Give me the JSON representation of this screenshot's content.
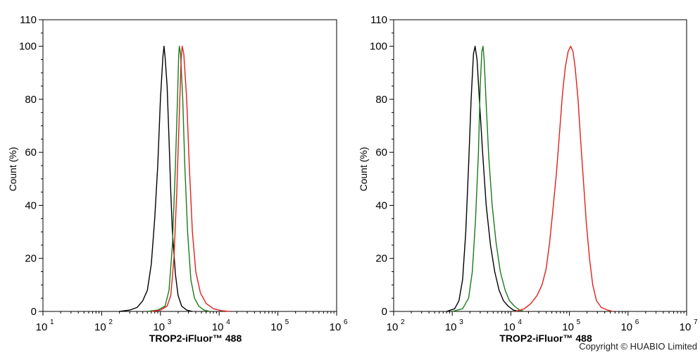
{
  "chart_data": [
    {
      "type": "line",
      "xlabel": "TROP2-iFluor™ 488",
      "ylabel": "Count  (%)",
      "x_scale": "log",
      "xlim": [
        10,
        1000000
      ],
      "ylim": [
        0,
        110
      ],
      "x_ticks": [
        {
          "base": "10",
          "exp": "1"
        },
        {
          "base": "10",
          "exp": "2"
        },
        {
          "base": "10",
          "exp": "3"
        },
        {
          "base": "10",
          "exp": "4"
        },
        {
          "base": "10",
          "exp": "5"
        },
        {
          "base": "10",
          "exp": "6"
        }
      ],
      "y_ticks": [
        "0",
        "20",
        "40",
        "60",
        "80",
        "100",
        "110"
      ],
      "grid": false,
      "series": [
        {
          "color": "#000000",
          "points": [
            [
              200,
              0
            ],
            [
              300,
              0.5
            ],
            [
              400,
              1.5
            ],
            [
              500,
              4
            ],
            [
              600,
              8
            ],
            [
              700,
              18
            ],
            [
              800,
              35
            ],
            [
              900,
              55
            ],
            [
              1000,
              80
            ],
            [
              1100,
              96
            ],
            [
              1150,
              100
            ],
            [
              1200,
              96
            ],
            [
              1300,
              85
            ],
            [
              1400,
              65
            ],
            [
              1500,
              45
            ],
            [
              1600,
              30
            ],
            [
              1800,
              14
            ],
            [
              2000,
              6
            ],
            [
              2300,
              2
            ],
            [
              2800,
              0.5
            ],
            [
              3500,
              0
            ]
          ]
        },
        {
          "color": "#1a7a1a",
          "points": [
            [
              600,
              0
            ],
            [
              900,
              0.5
            ],
            [
              1200,
              2
            ],
            [
              1400,
              8
            ],
            [
              1600,
              25
            ],
            [
              1800,
              55
            ],
            [
              1950,
              80
            ],
            [
              2050,
              97
            ],
            [
              2100,
              100
            ],
            [
              2200,
              97
            ],
            [
              2400,
              80
            ],
            [
              2600,
              55
            ],
            [
              2900,
              30
            ],
            [
              3300,
              12
            ],
            [
              3800,
              5
            ],
            [
              4500,
              2
            ],
            [
              5500,
              0.5
            ],
            [
              7000,
              0
            ]
          ]
        },
        {
          "color": "#e0201a",
          "points": [
            [
              700,
              0
            ],
            [
              1000,
              0.5
            ],
            [
              1300,
              2
            ],
            [
              1500,
              6
            ],
            [
              1700,
              20
            ],
            [
              1900,
              45
            ],
            [
              2100,
              75
            ],
            [
              2250,
              95
            ],
            [
              2350,
              100
            ],
            [
              2500,
              97
            ],
            [
              2800,
              80
            ],
            [
              3100,
              55
            ],
            [
              3500,
              30
            ],
            [
              4000,
              15
            ],
            [
              4800,
              7
            ],
            [
              6000,
              3
            ],
            [
              8000,
              1
            ],
            [
              11000,
              0.3
            ],
            [
              15000,
              0
            ]
          ]
        }
      ]
    },
    {
      "type": "line",
      "xlabel": "TROP2-iFluor™ 488",
      "ylabel": "Count  (%)",
      "x_scale": "log",
      "xlim": [
        100,
        10000000
      ],
      "ylim": [
        0,
        110
      ],
      "x_ticks": [
        {
          "base": "10",
          "exp": "2"
        },
        {
          "base": "10",
          "exp": "3"
        },
        {
          "base": "10",
          "exp": "4"
        },
        {
          "base": "10",
          "exp": "5"
        },
        {
          "base": "10",
          "exp": "6"
        },
        {
          "base": "10",
          "exp": "7"
        }
      ],
      "y_ticks": [
        "0",
        "20",
        "40",
        "60",
        "80",
        "100",
        "110"
      ],
      "grid": false,
      "series": [
        {
          "color": "#000000",
          "points": [
            [
              800,
              0
            ],
            [
              1100,
              1
            ],
            [
              1300,
              4
            ],
            [
              1500,
              12
            ],
            [
              1700,
              30
            ],
            [
              1900,
              55
            ],
            [
              2100,
              80
            ],
            [
              2300,
              97
            ],
            [
              2450,
              100
            ],
            [
              2650,
              95
            ],
            [
              2900,
              80
            ],
            [
              3300,
              60
            ],
            [
              3800,
              40
            ],
            [
              4500,
              25
            ],
            [
              5300,
              15
            ],
            [
              6300,
              8
            ],
            [
              7500,
              4
            ],
            [
              9000,
              2
            ],
            [
              11000,
              0.5
            ],
            [
              14000,
              0
            ]
          ]
        },
        {
          "color": "#1a7a1a",
          "points": [
            [
              1000,
              0
            ],
            [
              1500,
              1
            ],
            [
              1900,
              5
            ],
            [
              2200,
              15
            ],
            [
              2500,
              35
            ],
            [
              2800,
              60
            ],
            [
              3000,
              85
            ],
            [
              3200,
              98
            ],
            [
              3350,
              100
            ],
            [
              3500,
              95
            ],
            [
              3800,
              78
            ],
            [
              4200,
              58
            ],
            [
              4800,
              40
            ],
            [
              5600,
              26
            ],
            [
              6600,
              15
            ],
            [
              8000,
              8
            ],
            [
              9500,
              4
            ],
            [
              11500,
              2
            ],
            [
              14000,
              0.5
            ],
            [
              17000,
              0
            ]
          ]
        },
        {
          "color": "#e0201a",
          "points": [
            [
              12000,
              0
            ],
            [
              17000,
              1
            ],
            [
              22000,
              3
            ],
            [
              28000,
              6
            ],
            [
              34000,
              10
            ],
            [
              40000,
              16
            ],
            [
              46000,
              26
            ],
            [
              52000,
              38
            ],
            [
              60000,
              52
            ],
            [
              68000,
              68
            ],
            [
              76000,
              82
            ],
            [
              85000,
              92
            ],
            [
              95000,
              98
            ],
            [
              105000,
              100
            ],
            [
              115000,
              98
            ],
            [
              125000,
              92
            ],
            [
              140000,
              80
            ],
            [
              155000,
              65
            ],
            [
              175000,
              48
            ],
            [
              195000,
              33
            ],
            [
              220000,
              20
            ],
            [
              250000,
              10
            ],
            [
              290000,
              4
            ],
            [
              350000,
              1.5
            ],
            [
              450000,
              0.5
            ],
            [
              550000,
              0
            ]
          ]
        }
      ]
    }
  ],
  "copyright": "Copyright © HUABIO Limited"
}
